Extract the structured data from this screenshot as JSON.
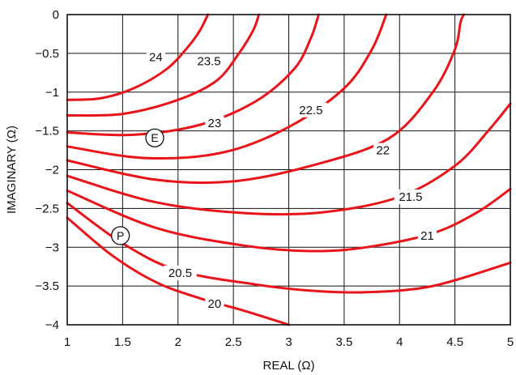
{
  "chart_data": {
    "type": "line",
    "title": "",
    "xlabel": "REAL (Ω)",
    "ylabel": "IMAGINARY (Ω)",
    "xlim": [
      1,
      5
    ],
    "ylim": [
      -4,
      0
    ],
    "xticks": [
      "1",
      "1.5",
      "2",
      "2.5",
      "3",
      "3.5",
      "4",
      "4.5",
      "5"
    ],
    "xtick_values": [
      1,
      1.5,
      2,
      2.5,
      3,
      3.5,
      4,
      4.5,
      5
    ],
    "yticks": [
      "0",
      "−0.5",
      "−1",
      "−1.5",
      "−2",
      "−2.5",
      "−3",
      "−3.5",
      "−4"
    ],
    "ytick_values": [
      0,
      -0.5,
      -1,
      -1.5,
      -2,
      -2.5,
      -3,
      -3.5,
      -4
    ],
    "grid": true,
    "line_color": "#e8141a",
    "series": [
      {
        "name": "24",
        "label": "24",
        "label_at": [
          1.8,
          -0.55
        ],
        "points": [
          [
            1,
            -1.1
          ],
          [
            1.3,
            -1.08
          ],
          [
            1.6,
            -0.95
          ],
          [
            1.9,
            -0.7
          ],
          [
            2.1,
            -0.4
          ],
          [
            2.2,
            -0.2
          ],
          [
            2.27,
            0
          ]
        ]
      },
      {
        "name": "23.5",
        "label": "23.5",
        "label_at": [
          2.28,
          -0.6
        ],
        "points": [
          [
            1,
            -1.3
          ],
          [
            1.5,
            -1.28
          ],
          [
            2,
            -1.1
          ],
          [
            2.35,
            -0.85
          ],
          [
            2.55,
            -0.5
          ],
          [
            2.68,
            -0.2
          ],
          [
            2.73,
            0
          ]
        ]
      },
      {
        "name": "23",
        "label": "23",
        "label_at": [
          2.33,
          -1.4
        ],
        "points": [
          [
            1,
            -1.52
          ],
          [
            1.6,
            -1.55
          ],
          [
            2.2,
            -1.42
          ],
          [
            2.7,
            -1.12
          ],
          [
            3.05,
            -0.7
          ],
          [
            3.2,
            -0.3
          ],
          [
            3.27,
            0
          ]
        ]
      },
      {
        "name": "22.5",
        "label": "22.5",
        "label_at": [
          3.2,
          -1.23
        ],
        "points": [
          [
            1,
            -1.7
          ],
          [
            1.7,
            -1.85
          ],
          [
            2.4,
            -1.78
          ],
          [
            3,
            -1.45
          ],
          [
            3.5,
            -0.95
          ],
          [
            3.75,
            -0.45
          ],
          [
            3.88,
            0
          ]
        ]
      },
      {
        "name": "22",
        "label": "22",
        "label_at": [
          3.85,
          -1.75
        ],
        "points": [
          [
            1,
            -1.88
          ],
          [
            1.8,
            -2.13
          ],
          [
            2.5,
            -2.15
          ],
          [
            3.2,
            -1.95
          ],
          [
            3.9,
            -1.6
          ],
          [
            4.3,
            -1.0
          ],
          [
            4.5,
            -0.45
          ],
          [
            4.55,
            -0.1
          ],
          [
            4.58,
            0
          ]
        ]
      },
      {
        "name": "21.5",
        "label": "21.5",
        "label_at": [
          4.1,
          -2.35
        ],
        "points": [
          [
            1,
            -2.08
          ],
          [
            1.8,
            -2.42
          ],
          [
            2.6,
            -2.56
          ],
          [
            3.3,
            -2.55
          ],
          [
            4,
            -2.35
          ],
          [
            4.5,
            -1.95
          ],
          [
            4.8,
            -1.5
          ],
          [
            5,
            -1.15
          ]
        ]
      },
      {
        "name": "21",
        "label": "21",
        "label_at": [
          4.25,
          -2.85
        ],
        "points": [
          [
            1,
            -2.27
          ],
          [
            1.8,
            -2.75
          ],
          [
            2.6,
            -2.98
          ],
          [
            3.2,
            -3.05
          ],
          [
            3.7,
            -3.0
          ],
          [
            4.3,
            -2.82
          ],
          [
            4.7,
            -2.55
          ],
          [
            5,
            -2.25
          ]
        ]
      },
      {
        "name": "20.5",
        "label": "20.5",
        "label_at": [
          2.02,
          -3.33
        ],
        "points": [
          [
            1,
            -2.43
          ],
          [
            1.5,
            -2.95
          ],
          [
            2,
            -3.3
          ],
          [
            2.7,
            -3.48
          ],
          [
            3.2,
            -3.56
          ],
          [
            3.7,
            -3.58
          ],
          [
            4.3,
            -3.5
          ],
          [
            5,
            -3.2
          ]
        ]
      },
      {
        "name": "20",
        "label": "20",
        "label_at": [
          2.33,
          -3.73
        ],
        "points": [
          [
            1,
            -2.62
          ],
          [
            1.4,
            -3.1
          ],
          [
            1.8,
            -3.45
          ],
          [
            2.2,
            -3.66
          ],
          [
            2.6,
            -3.82
          ],
          [
            3,
            -4.0
          ]
        ]
      }
    ],
    "markers": [
      {
        "label": "E",
        "at": [
          1.79,
          -1.59
        ]
      },
      {
        "label": "P",
        "at": [
          1.48,
          -2.85
        ]
      }
    ]
  }
}
